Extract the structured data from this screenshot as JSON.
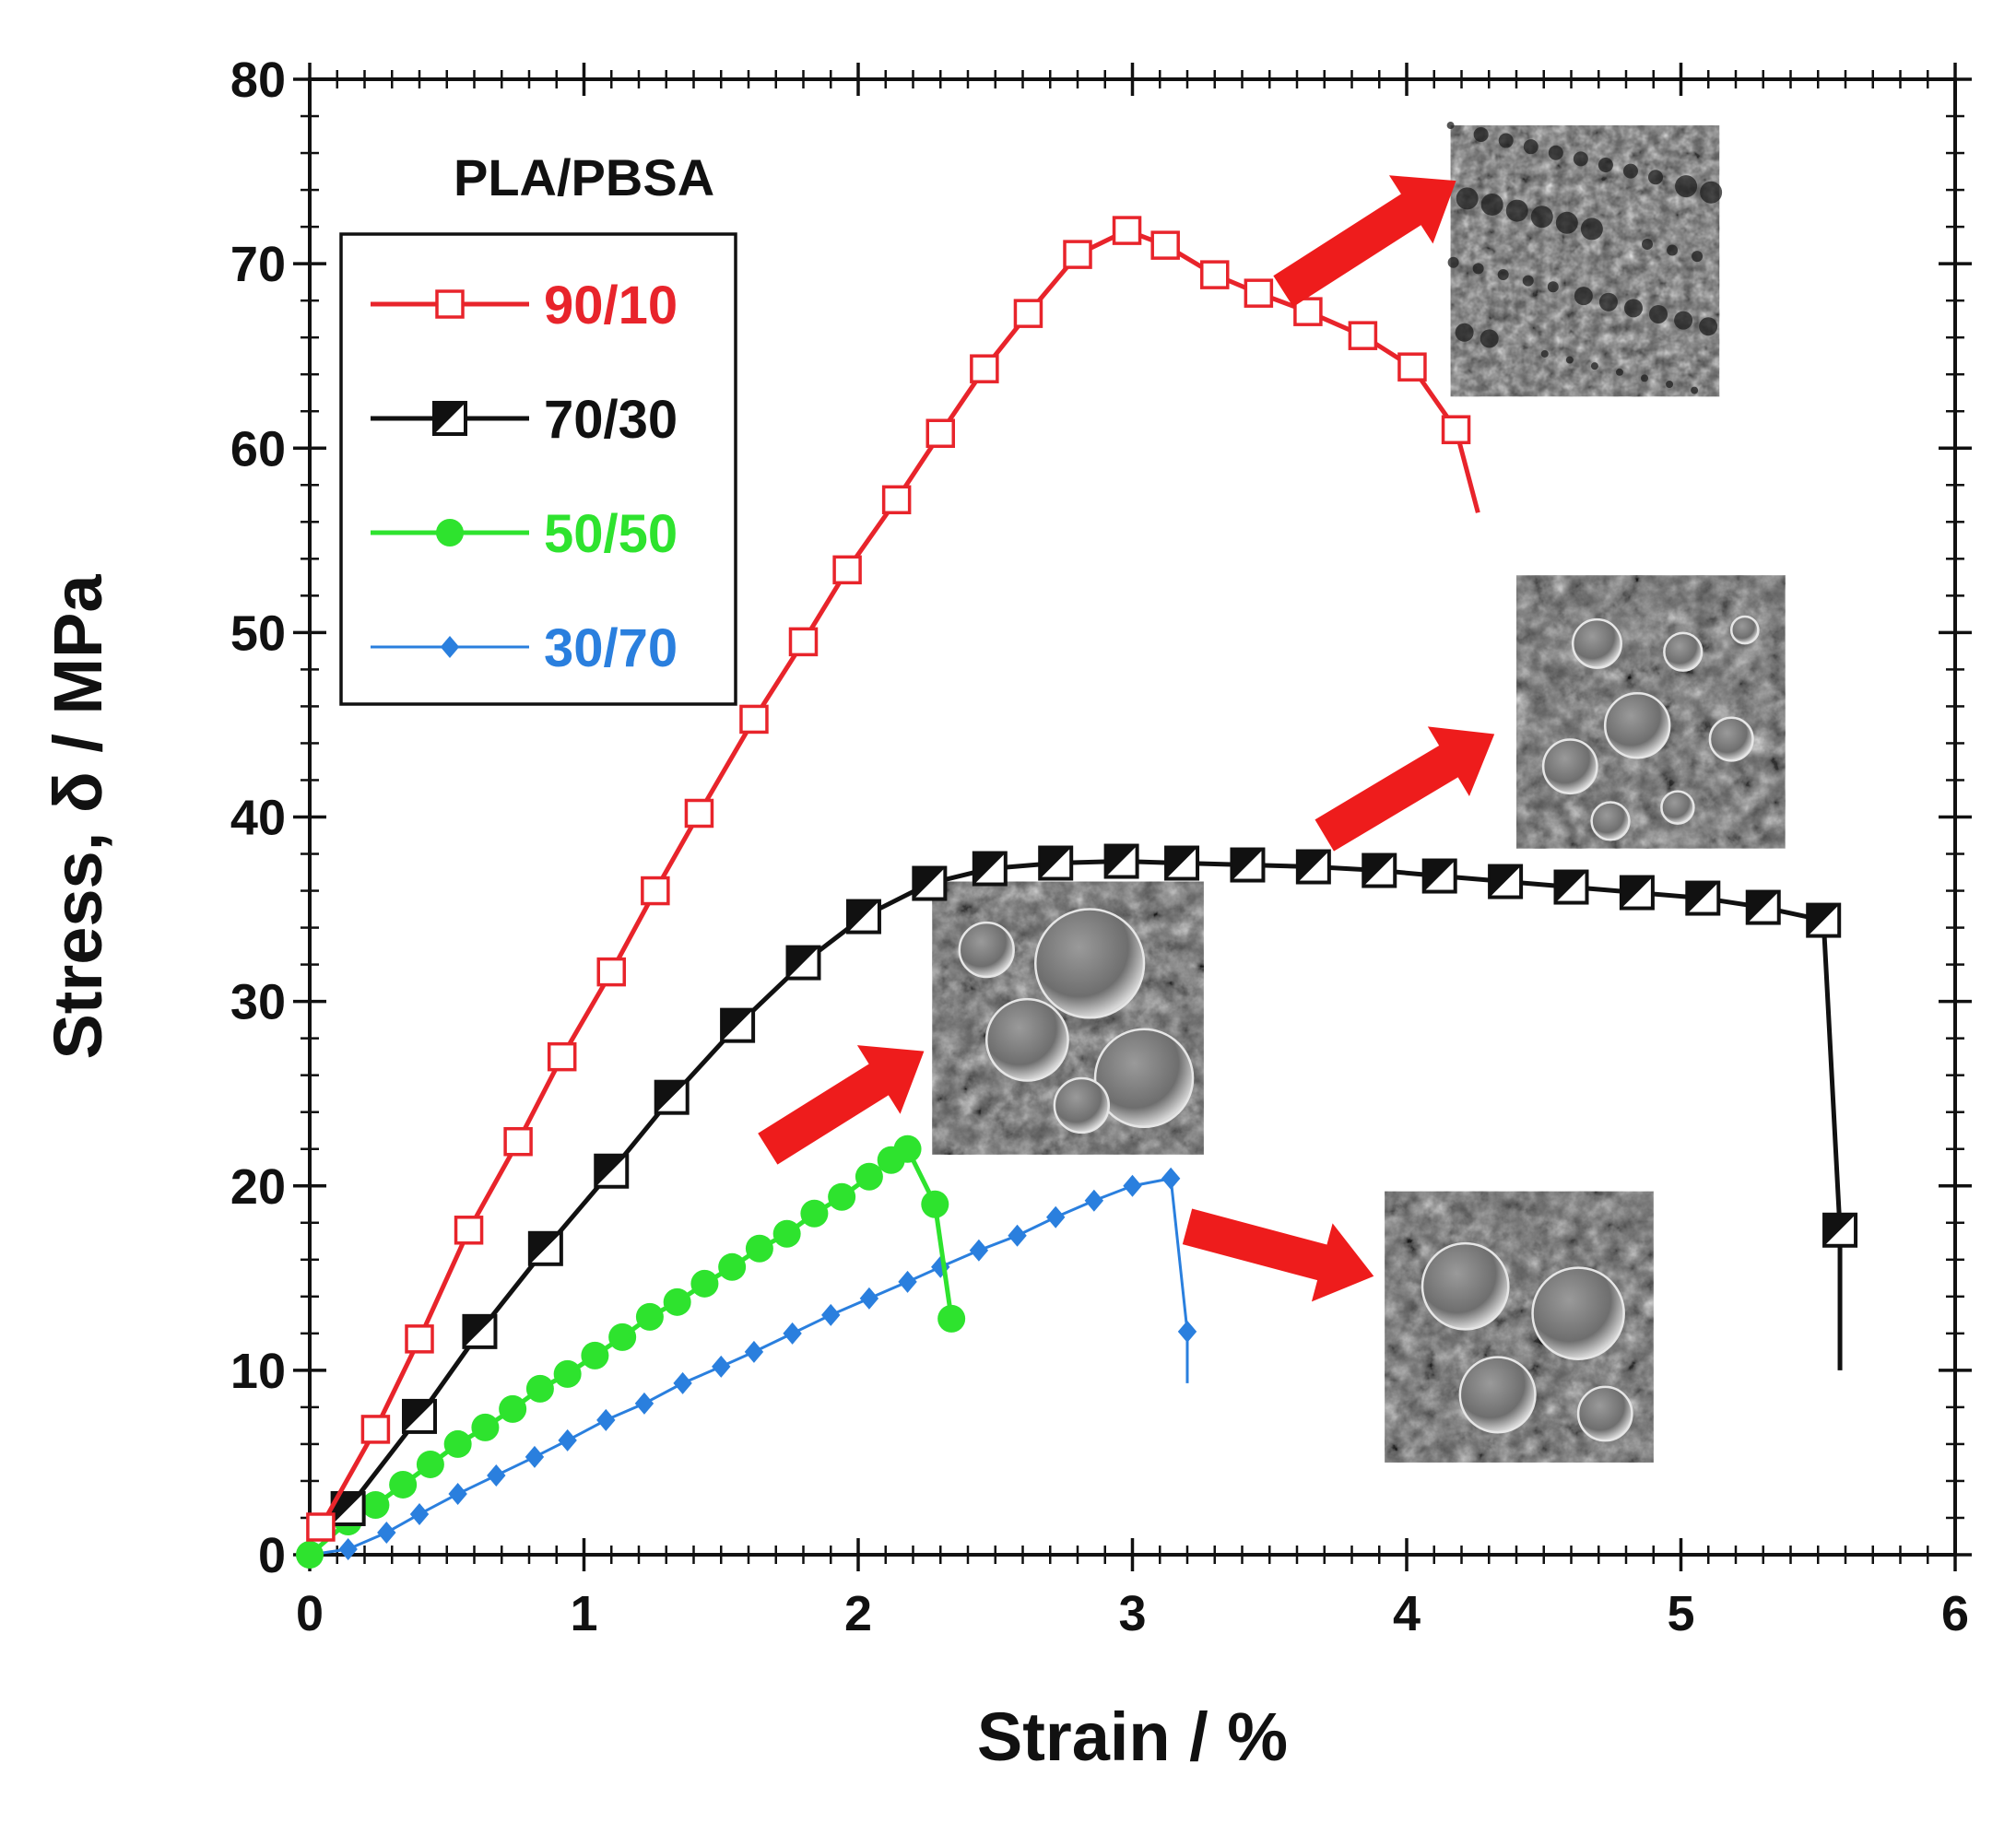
{
  "chart_data": {
    "type": "line",
    "title": "",
    "xlabel": "Strain / %",
    "ylabel": "Stress, δ / MPa",
    "xlim": [
      0,
      6
    ],
    "ylim": [
      0,
      80
    ],
    "xticks": [
      "0",
      "1",
      "2",
      "3",
      "4",
      "5",
      "6"
    ],
    "yticks": [
      "0",
      "10",
      "20",
      "30",
      "40",
      "50",
      "60",
      "70",
      "80"
    ],
    "grid": false,
    "legend": {
      "title": "PLA/PBSA",
      "placement": "upper-left"
    },
    "series": [
      {
        "name": "90/10",
        "color": "#e8242b",
        "marker": "open-square",
        "x": [
          0.04,
          0.24,
          0.4,
          0.58,
          0.76,
          0.92,
          1.1,
          1.26,
          1.42,
          1.62,
          1.8,
          1.96,
          2.14,
          2.3,
          2.46,
          2.62,
          2.8,
          2.98,
          3.12,
          3.3,
          3.46,
          3.64,
          3.84,
          4.02,
          4.18
        ],
        "y": [
          1.5,
          6.8,
          11.7,
          17.6,
          22.4,
          27.0,
          31.6,
          36.0,
          40.2,
          45.3,
          49.5,
          53.4,
          57.2,
          60.8,
          64.3,
          67.3,
          70.5,
          71.8,
          71.0,
          69.4,
          68.4,
          67.4,
          66.1,
          64.4,
          61.0
        ],
        "end": [
          4.26,
          56.5
        ]
      },
      {
        "name": "70/30",
        "color": "#111111",
        "marker": "half-filled-square",
        "x": [
          0.14,
          0.4,
          0.62,
          0.86,
          1.1,
          1.32,
          1.56,
          1.8,
          2.02,
          2.26,
          2.48,
          2.72,
          2.96,
          3.18,
          3.42,
          3.66,
          3.9,
          4.12,
          4.36,
          4.6,
          4.84,
          5.08,
          5.3,
          5.52,
          5.58
        ],
        "y": [
          2.5,
          7.5,
          12.1,
          16.6,
          20.8,
          24.8,
          28.7,
          32.1,
          34.6,
          36.4,
          37.2,
          37.5,
          37.6,
          37.5,
          37.4,
          37.3,
          37.1,
          36.8,
          36.5,
          36.2,
          35.9,
          35.6,
          35.1,
          34.4,
          17.6
        ],
        "end": [
          5.58,
          10.0
        ]
      },
      {
        "name": "50/50",
        "color": "#2ee32e",
        "marker": "filled-circle",
        "x": [
          0.0,
          0.14,
          0.24,
          0.34,
          0.44,
          0.54,
          0.64,
          0.74,
          0.84,
          0.94,
          1.04,
          1.14,
          1.24,
          1.34,
          1.44,
          1.54,
          1.64,
          1.74,
          1.84,
          1.94,
          2.04,
          2.12,
          2.18,
          2.28,
          2.34
        ],
        "y": [
          0.0,
          1.8,
          2.7,
          3.8,
          4.9,
          6.0,
          6.9,
          7.9,
          9.0,
          9.8,
          10.8,
          11.8,
          12.9,
          13.7,
          14.7,
          15.6,
          16.6,
          17.4,
          18.5,
          19.4,
          20.5,
          21.4,
          22.0,
          19.0,
          12.8
        ],
        "end": [
          2.34,
          12.8
        ]
      },
      {
        "name": "30/70",
        "color": "#2a7fde",
        "marker": "filled-diamond",
        "x": [
          0.0,
          0.14,
          0.28,
          0.4,
          0.54,
          0.68,
          0.82,
          0.94,
          1.08,
          1.22,
          1.36,
          1.5,
          1.62,
          1.76,
          1.9,
          2.04,
          2.18,
          2.3,
          2.44,
          2.58,
          2.72,
          2.86,
          3.0,
          3.14,
          3.2
        ],
        "y": [
          0.0,
          0.3,
          1.2,
          2.2,
          3.3,
          4.3,
          5.3,
          6.2,
          7.3,
          8.2,
          9.3,
          10.2,
          11.0,
          12.0,
          13.0,
          13.9,
          14.8,
          15.6,
          16.5,
          17.3,
          18.3,
          19.2,
          20.0,
          20.4,
          12.1
        ],
        "end": [
          3.2,
          9.3
        ]
      }
    ],
    "annotations": [
      {
        "type": "arrow",
        "from": [
          3.55,
          68.5
        ],
        "to": [
          4.18,
          74.5
        ],
        "color": "#ee1c1c"
      },
      {
        "type": "arrow",
        "from": [
          3.7,
          39.0
        ],
        "to": [
          4.32,
          44.5
        ],
        "color": "#ee1c1c"
      },
      {
        "type": "arrow",
        "from": [
          1.67,
          22.0
        ],
        "to": [
          2.24,
          27.3
        ],
        "color": "#ee1c1c"
      },
      {
        "type": "arrow",
        "from": [
          3.2,
          17.8
        ],
        "to": [
          3.88,
          15.1
        ],
        "color": "#ee1c1c"
      },
      {
        "type": "image",
        "name": "sem-micrograph-90-10",
        "x": [
          4.16,
          5.14
        ],
        "y": [
          62.8,
          77.5
        ]
      },
      {
        "type": "image",
        "name": "sem-micrograph-70-30",
        "x": [
          4.4,
          5.38
        ],
        "y": [
          38.3,
          53.1
        ]
      },
      {
        "type": "image",
        "name": "sem-micrograph-50-50",
        "x": [
          2.27,
          3.26
        ],
        "y": [
          21.7,
          36.5
        ]
      },
      {
        "type": "image",
        "name": "sem-micrograph-30-70",
        "x": [
          3.92,
          4.9
        ],
        "y": [
          5.0,
          19.7
        ]
      }
    ]
  }
}
